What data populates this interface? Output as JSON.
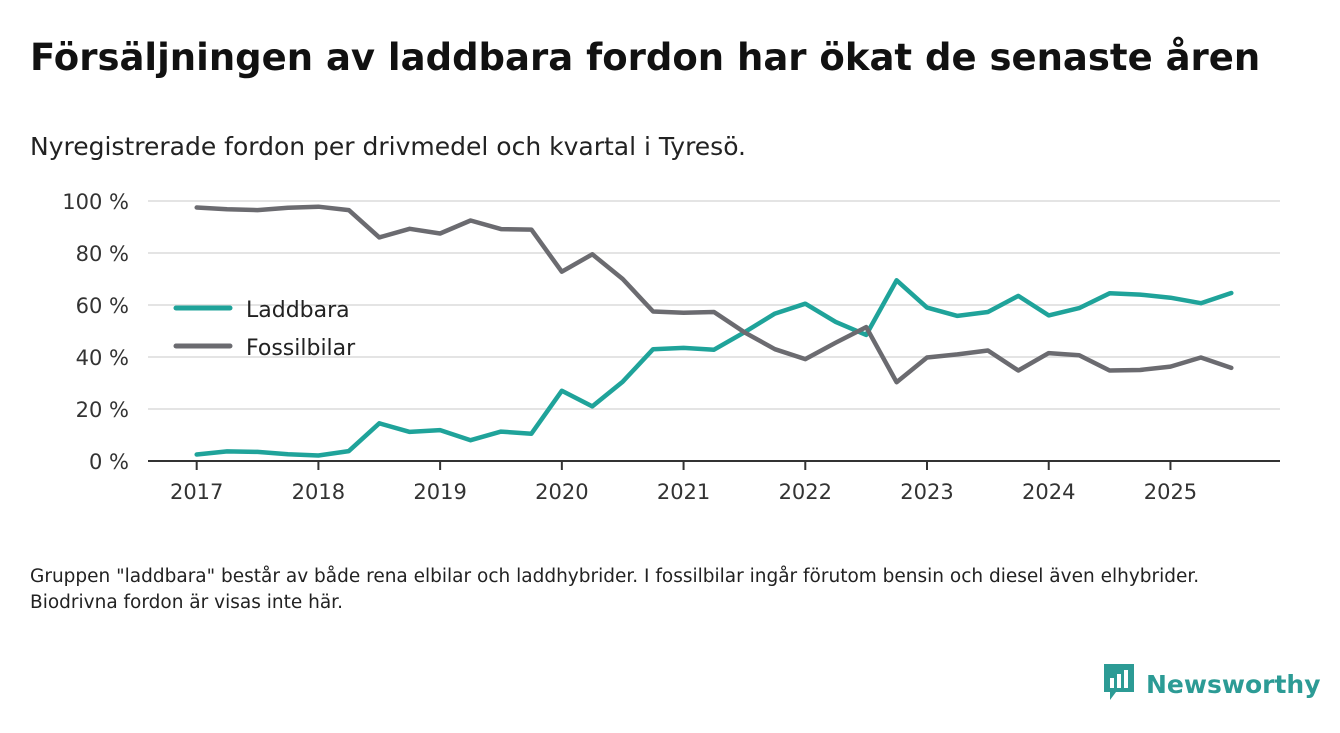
{
  "page": {
    "title": "Försäljningen av laddbara fordon har ökat de senaste åren",
    "subtitle": "Nyregistrerade fordon per drivmedel och kvartal i Tyresö.",
    "footnote": "Gruppen \"laddbara\" består av både rena elbilar och laddhybrider. I fossilbilar ingår förutom bensin och diesel även elhybrider. Biodrivna fordon är visas inte här.",
    "brand": "Newsworthy"
  },
  "colors": {
    "laddbara": "#1fa39a",
    "fossil": "#6b6b70",
    "grid": "#dcdcdc",
    "axis": "#333333",
    "brand": "#2c9b95"
  },
  "chart_data": {
    "type": "line",
    "title": "Försäljningen av laddbara fordon har ökat de senaste åren",
    "xlabel": "",
    "ylabel": "",
    "x": [
      2017,
      2017.25,
      2017.5,
      2017.75,
      2018,
      2018.25,
      2018.5,
      2018.75,
      2019,
      2019.25,
      2019.5,
      2019.75,
      2020,
      2020.25,
      2020.5,
      2020.75,
      2021,
      2021.25,
      2021.5,
      2021.75,
      2022,
      2022.25,
      2022.5,
      2022.75,
      2023,
      2023.25,
      2023.5,
      2023.75,
      2024,
      2024.25,
      2024.5,
      2024.75,
      2025,
      2025.25,
      2025.5
    ],
    "series": [
      {
        "name": "Laddbara",
        "color_key": "laddbara",
        "values": [
          2.5,
          3.7,
          3.5,
          2.6,
          2.1,
          3.8,
          14.5,
          11.2,
          11.9,
          8.0,
          11.3,
          10.5,
          27.0,
          21.0,
          30.5,
          43.0,
          43.5,
          42.8,
          49.5,
          56.7,
          60.5,
          53.5,
          48.5,
          69.5,
          59.0,
          55.8,
          57.3,
          63.5,
          56.0,
          58.8,
          64.5,
          64.0,
          62.8,
          60.7,
          64.6
        ]
      },
      {
        "name": "Fossilbilar",
        "color_key": "fossil",
        "values": [
          97.5,
          96.8,
          96.5,
          97.4,
          97.8,
          96.5,
          86.0,
          89.3,
          87.5,
          92.5,
          89.2,
          89.0,
          72.8,
          79.5,
          70.0,
          57.5,
          57.0,
          57.3,
          49.5,
          43.0,
          39.2,
          45.5,
          51.5,
          30.3,
          39.8,
          41.0,
          42.5,
          34.8,
          41.5,
          40.7,
          34.8,
          35.0,
          36.3,
          39.8,
          35.8
        ]
      }
    ],
    "ylim": [
      0,
      100
    ],
    "xlim": [
      2016.6,
      2025.9
    ],
    "y_ticks": [
      0,
      20,
      40,
      60,
      80,
      100
    ],
    "y_tick_labels": [
      "0 %",
      "20 %",
      "40 %",
      "60 %",
      "80 %",
      "100 %"
    ],
    "x_ticks": [
      2017,
      2018,
      2019,
      2020,
      2021,
      2022,
      2023,
      2024,
      2025
    ],
    "x_tick_labels": [
      "2017",
      "2018",
      "2019",
      "2020",
      "2021",
      "2022",
      "2023",
      "2024",
      "2025"
    ],
    "grid": true,
    "legend_position": "left-middle"
  }
}
